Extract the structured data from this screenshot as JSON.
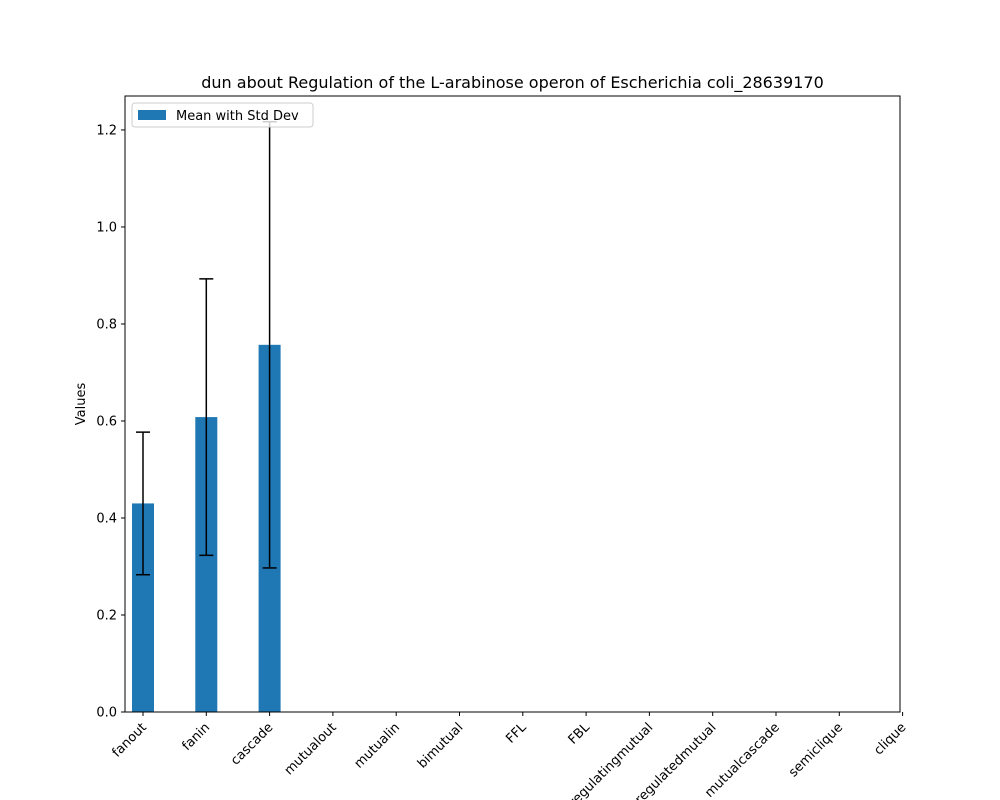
{
  "chart_data": {
    "type": "bar",
    "title": "dun about Regulation of the L-arabinose operon of Escherichia coli_28639170",
    "xlabel": "",
    "ylabel": "Values",
    "ylim": [
      0,
      1.27
    ],
    "y_ticks": [
      "0.0",
      "0.2",
      "0.4",
      "0.6",
      "0.8",
      "1.0",
      "1.2"
    ],
    "y_tick_values": [
      0,
      0.2,
      0.4,
      0.6,
      0.8,
      1.0,
      1.2
    ],
    "categories": [
      "fanout",
      "fanin",
      "cascade",
      "mutualout",
      "mutualin",
      "bimutual",
      "FFL",
      "FBL",
      "regulatingmutual",
      "regulatedmutual",
      "mutualcascade",
      "semiclique",
      "clique"
    ],
    "series": [
      {
        "name": "Mean with Std Dev",
        "values": [
          0.43,
          0.608,
          0.757,
          0,
          0,
          0,
          0,
          0,
          0,
          0,
          0,
          0,
          0
        ],
        "errors": [
          0.147,
          0.285,
          0.46,
          0,
          0,
          0,
          0,
          0,
          0,
          0,
          0,
          0,
          0
        ]
      }
    ],
    "legend_position": "top-left",
    "grid": false,
    "colors": {
      "bar": "#1f77b4",
      "error": "#000000",
      "axes": "#000000",
      "legend_border": "#cccccc"
    }
  }
}
